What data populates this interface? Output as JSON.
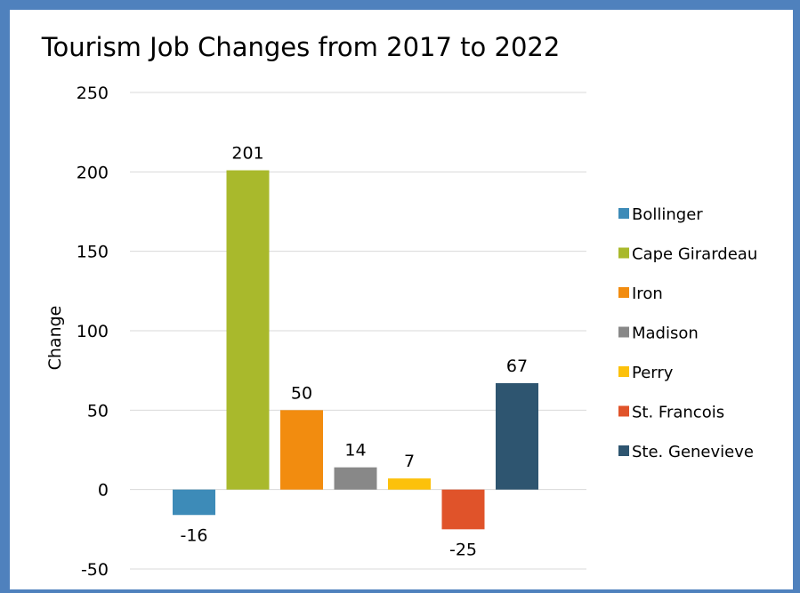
{
  "chart_data": {
    "type": "bar",
    "title": "Tourism Job Changes from 2017 to 2022",
    "xlabel": "",
    "ylabel": "Change",
    "ylim": [
      -50,
      250
    ],
    "yticks": [
      -50,
      0,
      50,
      100,
      150,
      200,
      250
    ],
    "grid": true,
    "legend_position": "right",
    "series": [
      {
        "name": "Bollinger",
        "value": -16,
        "color": "#3d8bb8"
      },
      {
        "name": "Cape Girardeau",
        "value": 201,
        "color": "#a9b92c"
      },
      {
        "name": "Iron",
        "value": 50,
        "color": "#f28c0f"
      },
      {
        "name": "Madison",
        "value": 14,
        "color": "#888888"
      },
      {
        "name": "Perry",
        "value": 7,
        "color": "#fcc10b"
      },
      {
        "name": "St. Francois",
        "value": -25,
        "color": "#e0532a"
      },
      {
        "name": "Ste. Genevieve",
        "value": 67,
        "color": "#2e5570"
      }
    ]
  }
}
